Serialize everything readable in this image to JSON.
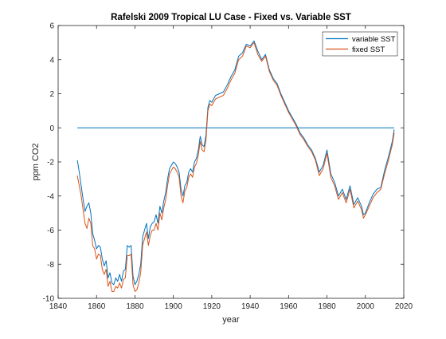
{
  "chart_data": {
    "type": "line",
    "title": "Rafelski 2009 Tropical LU Case - Fixed vs. Variable SST",
    "xlabel": "year",
    "ylabel": "ppm CO2",
    "xlim": [
      1840,
      2020
    ],
    "ylim": [
      -10,
      6
    ],
    "xticks": [
      1840,
      1860,
      1880,
      1900,
      1920,
      1940,
      1960,
      1980,
      2000,
      2020
    ],
    "yticks": [
      -10,
      -8,
      -6,
      -4,
      -2,
      0,
      2,
      4,
      6
    ],
    "grid": false,
    "legend_position": "top-right",
    "colors": {
      "variable": "#0072BD",
      "fixed": "#D95319",
      "zero_line": "#0072BD",
      "axes": "#262626"
    },
    "series": [
      {
        "name": "variable SST",
        "x": [
          1850,
          1851,
          1852,
          1853,
          1854,
          1855,
          1856,
          1857,
          1858,
          1859,
          1860,
          1861,
          1862,
          1863,
          1864,
          1865,
          1866,
          1867,
          1868,
          1869,
          1870,
          1871,
          1872,
          1873,
          1874,
          1875,
          1876,
          1877,
          1878,
          1879,
          1880,
          1881,
          1882,
          1883,
          1884,
          1885,
          1886,
          1887,
          1888,
          1889,
          1890,
          1891,
          1892,
          1893,
          1894,
          1895,
          1896,
          1897,
          1898,
          1899,
          1900,
          1901,
          1902,
          1903,
          1904,
          1905,
          1906,
          1907,
          1908,
          1909,
          1910,
          1911,
          1912,
          1913,
          1914,
          1915,
          1916,
          1917,
          1918,
          1919,
          1920,
          1922,
          1924,
          1926,
          1928,
          1930,
          1932,
          1934,
          1936,
          1938,
          1940,
          1942,
          1944,
          1946,
          1948,
          1950,
          1952,
          1954,
          1956,
          1958,
          1960,
          1962,
          1964,
          1966,
          1968,
          1970,
          1972,
          1974,
          1976,
          1978,
          1980,
          1982,
          1984,
          1986,
          1988,
          1990,
          1992,
          1994,
          1996,
          1998,
          1999,
          2000,
          2002,
          2004,
          2006,
          2008,
          2010,
          2012,
          2014,
          2015
        ],
        "y": [
          -1.9,
          -2.6,
          -3.4,
          -4.2,
          -4.9,
          -4.6,
          -4.4,
          -5.0,
          -6.2,
          -6.6,
          -7.1,
          -6.9,
          -7.0,
          -7.7,
          -8.1,
          -7.8,
          -8.8,
          -8.5,
          -9.1,
          -9.2,
          -8.8,
          -9.0,
          -8.6,
          -9.0,
          -8.4,
          -8.3,
          -6.9,
          -7.0,
          -6.9,
          -8.7,
          -9.2,
          -9.0,
          -8.6,
          -8.0,
          -6.4,
          -6.0,
          -5.6,
          -6.5,
          -5.8,
          -5.6,
          -5.5,
          -5.1,
          -5.6,
          -4.6,
          -5.0,
          -4.3,
          -3.8,
          -3.0,
          -2.4,
          -2.2,
          -2.0,
          -2.1,
          -2.3,
          -2.6,
          -3.6,
          -4.0,
          -3.4,
          -3.2,
          -2.6,
          -2.4,
          -2.6,
          -2.0,
          -1.8,
          -1.3,
          -0.5,
          -1.0,
          -1.1,
          -0.4,
          1.2,
          1.6,
          1.5,
          1.9,
          2.0,
          2.1,
          2.5,
          3.0,
          3.4,
          4.2,
          4.4,
          4.9,
          4.8,
          5.1,
          4.5,
          4.0,
          4.3,
          3.4,
          2.9,
          2.6,
          2.0,
          1.5,
          1.0,
          0.6,
          0.2,
          -0.3,
          -0.6,
          -1.0,
          -1.3,
          -1.8,
          -2.6,
          -2.2,
          -1.3,
          -2.7,
          -3.2,
          -4.0,
          -3.6,
          -4.2,
          -3.4,
          -4.5,
          -4.1,
          -4.6,
          -5.1,
          -5.0,
          -4.4,
          -3.9,
          -3.6,
          -3.5,
          -2.5,
          -1.7,
          -0.8,
          -0.1
        ]
      },
      {
        "name": "fixed SST",
        "x": [
          1850,
          1851,
          1852,
          1853,
          1854,
          1855,
          1856,
          1857,
          1858,
          1859,
          1860,
          1861,
          1862,
          1863,
          1864,
          1865,
          1866,
          1867,
          1868,
          1869,
          1870,
          1871,
          1872,
          1873,
          1874,
          1875,
          1876,
          1877,
          1878,
          1879,
          1880,
          1881,
          1882,
          1883,
          1884,
          1885,
          1886,
          1887,
          1888,
          1889,
          1890,
          1891,
          1892,
          1893,
          1894,
          1895,
          1896,
          1897,
          1898,
          1899,
          1900,
          1901,
          1902,
          1903,
          1904,
          1905,
          1906,
          1907,
          1908,
          1909,
          1910,
          1911,
          1912,
          1913,
          1914,
          1915,
          1916,
          1917,
          1918,
          1919,
          1920,
          1922,
          1924,
          1926,
          1928,
          1930,
          1932,
          1934,
          1936,
          1938,
          1940,
          1942,
          1944,
          1946,
          1948,
          1950,
          1952,
          1954,
          1956,
          1958,
          1960,
          1962,
          1964,
          1966,
          1968,
          1970,
          1972,
          1974,
          1976,
          1978,
          1980,
          1982,
          1984,
          1986,
          1988,
          1990,
          1992,
          1994,
          1996,
          1998,
          1999,
          2000,
          2002,
          2004,
          2006,
          2008,
          2010,
          2012,
          2014,
          2015
        ],
        "y": [
          -2.8,
          -3.4,
          -4.0,
          -4.8,
          -5.6,
          -5.9,
          -5.3,
          -5.6,
          -6.9,
          -7.1,
          -7.7,
          -7.4,
          -7.5,
          -8.3,
          -8.6,
          -8.3,
          -9.3,
          -9.0,
          -9.6,
          -9.6,
          -9.3,
          -9.4,
          -9.1,
          -9.4,
          -8.9,
          -8.8,
          -7.5,
          -7.5,
          -7.4,
          -9.2,
          -9.6,
          -9.5,
          -9.1,
          -8.5,
          -6.9,
          -6.5,
          -6.1,
          -6.9,
          -6.3,
          -6.0,
          -6.0,
          -5.6,
          -6.0,
          -5.0,
          -5.4,
          -4.7,
          -4.2,
          -3.4,
          -2.7,
          -2.5,
          -2.3,
          -2.4,
          -2.6,
          -2.9,
          -4.0,
          -4.4,
          -3.7,
          -3.5,
          -2.9,
          -2.7,
          -2.9,
          -2.3,
          -2.1,
          -1.6,
          -0.8,
          -1.3,
          -1.4,
          -0.7,
          1.0,
          1.4,
          1.3,
          1.7,
          1.8,
          1.9,
          2.3,
          2.8,
          3.2,
          4.0,
          4.2,
          4.8,
          4.7,
          5.0,
          4.3,
          3.9,
          4.2,
          3.3,
          2.8,
          2.5,
          1.9,
          1.4,
          0.9,
          0.5,
          0.1,
          -0.4,
          -0.7,
          -1.1,
          -1.4,
          -1.9,
          -2.8,
          -2.4,
          -1.5,
          -2.9,
          -3.4,
          -4.2,
          -3.8,
          -4.4,
          -3.6,
          -4.7,
          -4.3,
          -4.8,
          -5.3,
          -5.1,
          -4.6,
          -4.1,
          -3.8,
          -3.6,
          -2.7,
          -1.9,
          -1.0,
          -0.3
        ]
      },
      {
        "x": [
          1850,
          2015
        ],
        "y": [
          0,
          0
        ]
      }
    ]
  }
}
